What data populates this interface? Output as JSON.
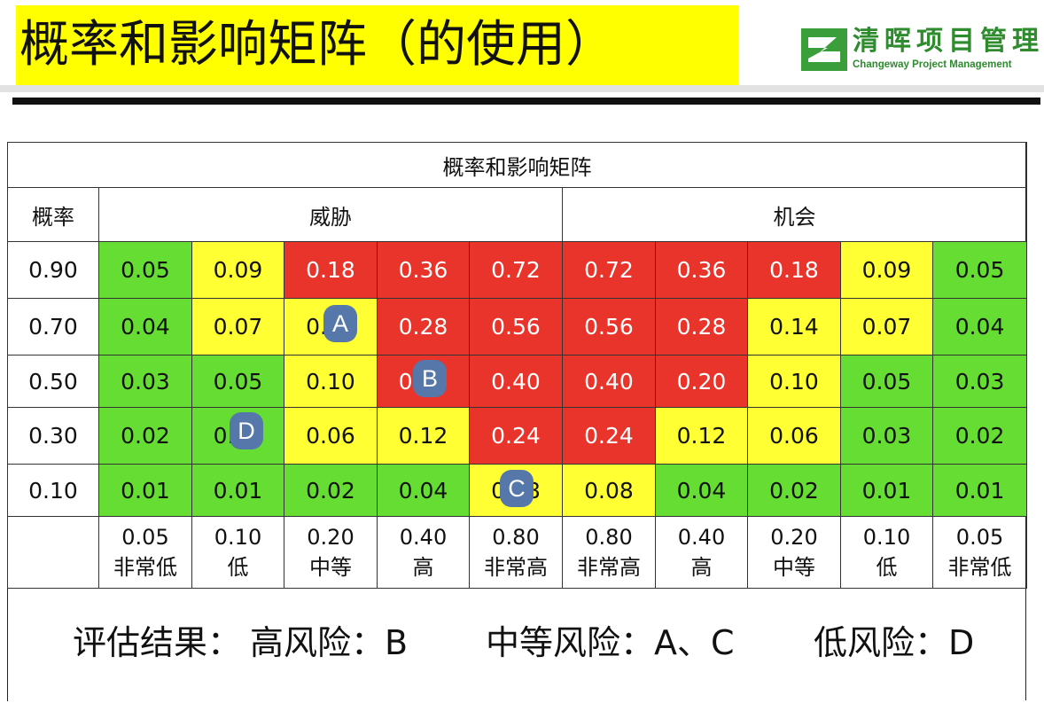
{
  "title": "概率和影响矩阵（的使用）",
  "logo": {
    "name_cn": "清晖项目管理",
    "name_en": "Changeway Project Management"
  },
  "matrix": {
    "title": "概率和影响矩阵",
    "prob_header": "概率",
    "threat_header": "威胁",
    "opportunity_header": "机会",
    "rows": [
      {
        "prob": "0.90",
        "cells": [
          "0.05",
          "0.09",
          "0.18",
          "0.36",
          "0.72",
          "0.72",
          "0.36",
          "0.18",
          "0.09",
          "0.05"
        ],
        "colors": [
          "g",
          "y",
          "r",
          "r",
          "r",
          "r",
          "r",
          "r",
          "y",
          "g"
        ]
      },
      {
        "prob": "0.70",
        "cells": [
          "0.04",
          "0.07",
          "0.14",
          "0.28",
          "0.56",
          "0.56",
          "0.28",
          "0.14",
          "0.07",
          "0.04"
        ],
        "colors": [
          "g",
          "y",
          "y",
          "r",
          "r",
          "r",
          "r",
          "y",
          "y",
          "g"
        ]
      },
      {
        "prob": "0.50",
        "cells": [
          "0.03",
          "0.05",
          "0.10",
          "0.20",
          "0.40",
          "0.40",
          "0.20",
          "0.10",
          "0.05",
          "0.03"
        ],
        "colors": [
          "g",
          "g",
          "y",
          "r",
          "r",
          "r",
          "r",
          "y",
          "g",
          "g"
        ]
      },
      {
        "prob": "0.30",
        "cells": [
          "0.02",
          "0.03",
          "0.06",
          "0.12",
          "0.24",
          "0.24",
          "0.12",
          "0.06",
          "0.03",
          "0.02"
        ],
        "colors": [
          "g",
          "g",
          "y",
          "y",
          "r",
          "r",
          "y",
          "y",
          "g",
          "g"
        ]
      },
      {
        "prob": "0.10",
        "cells": [
          "0.01",
          "0.01",
          "0.02",
          "0.04",
          "0.08",
          "0.08",
          "0.04",
          "0.02",
          "0.01",
          "0.01"
        ],
        "colors": [
          "g",
          "g",
          "g",
          "g",
          "y",
          "y",
          "g",
          "g",
          "g",
          "g"
        ]
      }
    ],
    "impacts": [
      {
        "value": "0.05",
        "label": "非常低"
      },
      {
        "value": "0.10",
        "label": "低"
      },
      {
        "value": "0.20",
        "label": "中等"
      },
      {
        "value": "0.40",
        "label": "高"
      },
      {
        "value": "0.80",
        "label": "非常高"
      },
      {
        "value": "0.80",
        "label": "非常高"
      },
      {
        "value": "0.40",
        "label": "高"
      },
      {
        "value": "0.20",
        "label": "中等"
      },
      {
        "value": "0.10",
        "label": "低"
      },
      {
        "value": "0.05",
        "label": "非常低"
      }
    ],
    "markers": [
      {
        "label": "A",
        "row": 1,
        "col": 2
      },
      {
        "label": "B",
        "row": 2,
        "col": 3
      },
      {
        "label": "D",
        "row": 3,
        "col": 1
      },
      {
        "label": "C",
        "row": 4,
        "col": 4
      }
    ]
  },
  "result": {
    "label": "评估结果：",
    "high": "高风险：B",
    "medium": "中等风险：A、C",
    "low": "低风险：D"
  },
  "colors": {
    "green": "#66dd33",
    "yellow": "#ffff33",
    "red": "#e8342a",
    "title_highlight": "#ffff00",
    "marker": "#5577aa",
    "logo_green": "#2e8b2e"
  }
}
